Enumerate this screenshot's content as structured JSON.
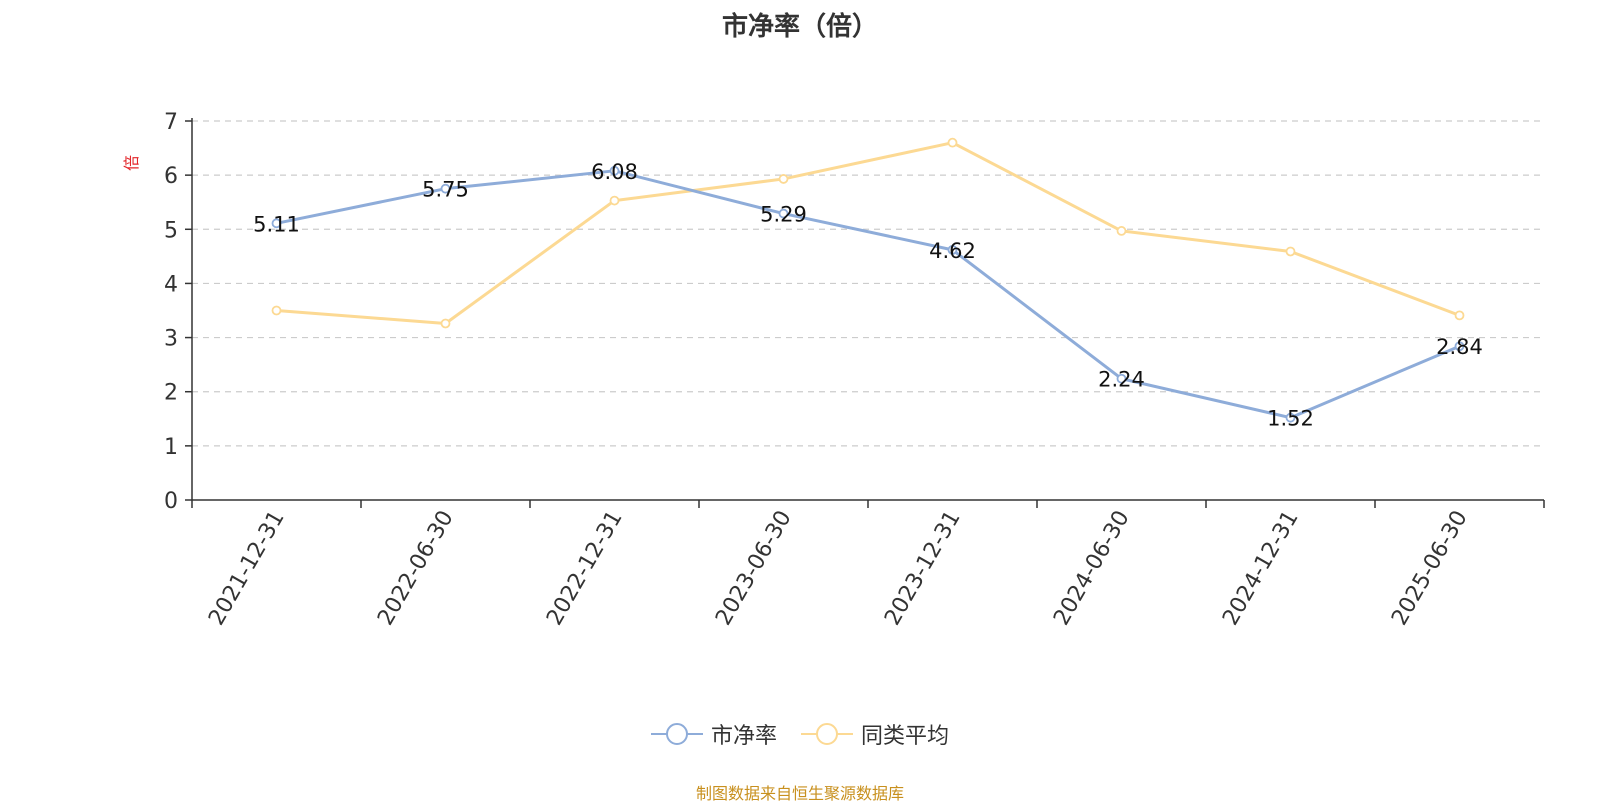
{
  "chart_data": {
    "type": "line",
    "title": "市净率（倍）",
    "ylabel": "倍",
    "categories": [
      "2021-12-31",
      "2022-06-30",
      "2022-12-31",
      "2023-06-30",
      "2023-12-31",
      "2024-06-30",
      "2024-12-31",
      "2025-06-30"
    ],
    "ylim": [
      0,
      7
    ],
    "yticks": [
      0,
      1,
      2,
      3,
      4,
      5,
      6,
      7
    ],
    "grid": true,
    "legend_position": "bottom",
    "series": [
      {
        "name": "市净率",
        "color": "#8eacd9",
        "values": [
          5.11,
          5.75,
          6.08,
          5.29,
          4.62,
          2.24,
          1.52,
          2.84
        ],
        "labels": [
          "5.11",
          "5.75",
          "6.08",
          "5.29",
          "4.62",
          "2.24",
          "1.52",
          "2.84"
        ]
      },
      {
        "name": "同类平均",
        "color": "#fcd993",
        "values": [
          3.5,
          3.26,
          5.53,
          5.93,
          6.6,
          4.97,
          4.59,
          3.41
        ]
      }
    ]
  },
  "ylabel_color": "#e3262a",
  "source_note": "制图数据来自恒生聚源数据库"
}
